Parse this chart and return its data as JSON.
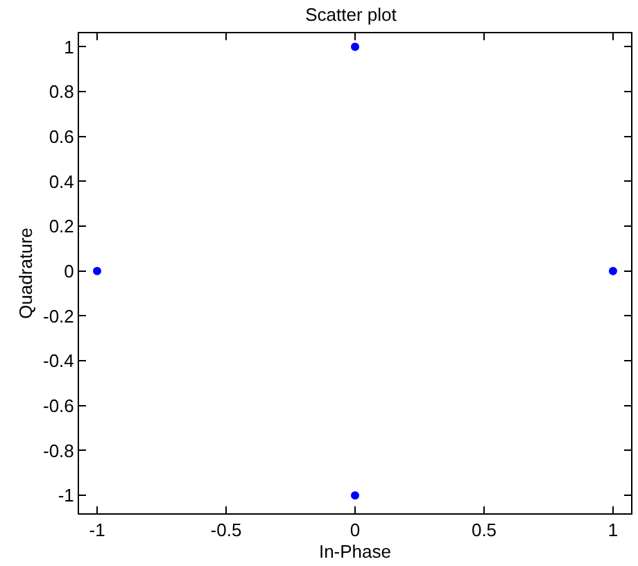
{
  "chart_data": {
    "type": "scatter",
    "title": "Scatter plot",
    "xlabel": "In-Phase",
    "ylabel": "Quadrature",
    "x": [
      0,
      -1,
      1,
      0
    ],
    "values": [
      1,
      0,
      0,
      -1
    ],
    "color": "#0000ff",
    "marker": "circle",
    "xlim": [
      -1.07,
      1.07
    ],
    "ylim": [
      -1.08,
      1.06
    ],
    "xticks": [
      -1,
      -0.5,
      0,
      0.5,
      1
    ],
    "yticks": [
      -1,
      -0.8,
      -0.6,
      -0.4,
      -0.2,
      0,
      0.2,
      0.4,
      0.6,
      0.8,
      1
    ],
    "grid": false
  }
}
